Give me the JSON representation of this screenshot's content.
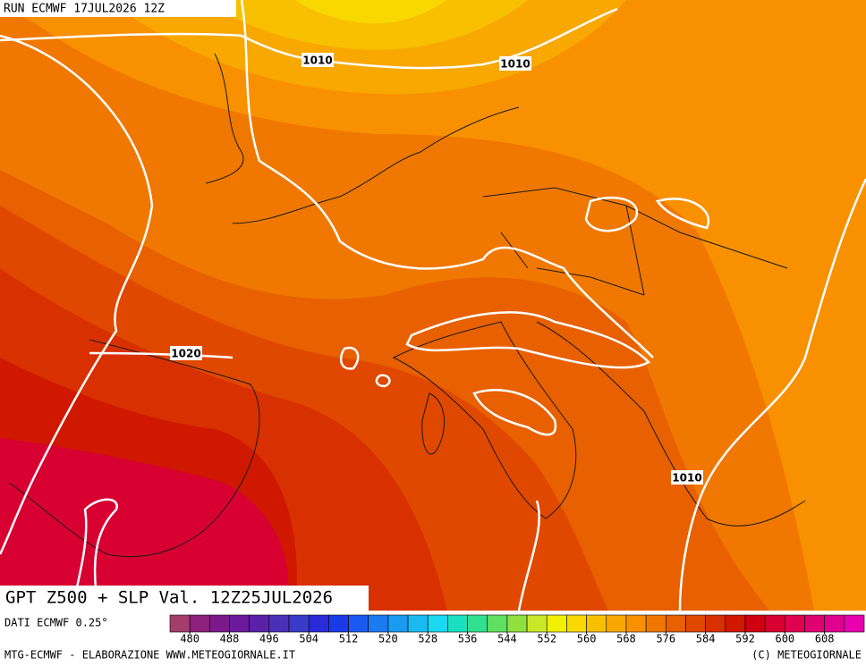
{
  "header": "RUN ECMWF 17JUL2026 12Z",
  "title": "GPT Z500 + SLP Val. 12Z25JUL2026",
  "source": "DATI ECMWF 0.25°",
  "footer_left": "MTG-ECMWF - ELABORAZIONE WWW.METEOGIORNALE.IT",
  "footer_right": "(C) METEOGIORNALE",
  "isobar_labels": [
    "1010",
    "1010",
    "1020",
    "1010"
  ],
  "colorbar": {
    "lim": [
      476,
      616
    ],
    "ticks": [
      480,
      488,
      496,
      504,
      512,
      520,
      528,
      536,
      544,
      552,
      560,
      568,
      576,
      584,
      592,
      600,
      608
    ],
    "colors": [
      "#a33d6b",
      "#8e1f7a",
      "#7a1a8a",
      "#6a1a9a",
      "#5a20a8",
      "#4a30b8",
      "#3a3ac8",
      "#2a2ad8",
      "#1a3ae8",
      "#1a5af0",
      "#1a7af0",
      "#1a9af0",
      "#1abaf0",
      "#1ad8f0",
      "#1ae0c0",
      "#30e090",
      "#60e060",
      "#90e040",
      "#c8e828",
      "#f0f000",
      "#f8d800",
      "#f8c000",
      "#f8a800",
      "#f89000",
      "#f07800",
      "#e86000",
      "#e04800",
      "#d83000",
      "#d01800",
      "#d00010",
      "#d80030",
      "#e00050",
      "#e00070",
      "#e00090",
      "#e800b0"
    ]
  }
}
